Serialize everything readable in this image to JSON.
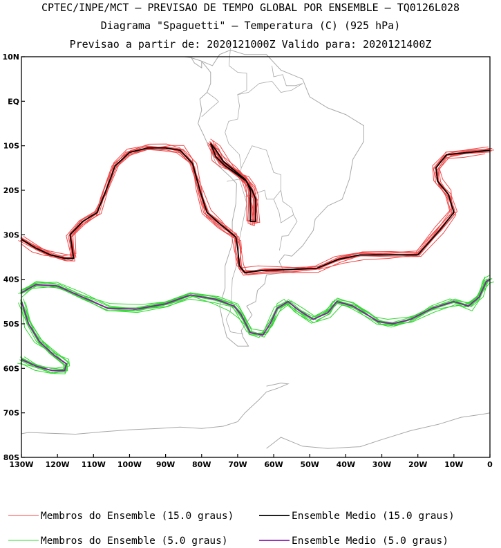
{
  "title": {
    "line1": "CPTEC/INPE/MCT – PREVISAO DE TEMPO GLOBAL POR ENSEMBLE – TQ0126L028",
    "line2": "Diagrama \"Spaguetti\" – Temperatura (C) (925 hPa)",
    "line3": "Previsao a partir de: 2020121000Z  Valido para: 2020121400Z"
  },
  "map": {
    "lat_range": [
      -80,
      10
    ],
    "lon_range": [
      -130,
      0
    ],
    "lat_ticks": [
      {
        "value": 10,
        "label": "10N"
      },
      {
        "value": 0,
        "label": "EQ"
      },
      {
        "value": -10,
        "label": "10S"
      },
      {
        "value": -20,
        "label": "20S"
      },
      {
        "value": -30,
        "label": "30S"
      },
      {
        "value": -40,
        "label": "40S"
      },
      {
        "value": -50,
        "label": "50S"
      },
      {
        "value": -60,
        "label": "60S"
      },
      {
        "value": -70,
        "label": "70S"
      },
      {
        "value": -80,
        "label": "80S"
      }
    ],
    "lon_ticks": [
      {
        "value": -130,
        "label": "130W"
      },
      {
        "value": -120,
        "label": "120W"
      },
      {
        "value": -110,
        "label": "110W"
      },
      {
        "value": -100,
        "label": "100W"
      },
      {
        "value": -90,
        "label": "90W"
      },
      {
        "value": -80,
        "label": "80W"
      },
      {
        "value": -70,
        "label": "70W"
      },
      {
        "value": -60,
        "label": "60W"
      },
      {
        "value": -50,
        "label": "50W"
      },
      {
        "value": -40,
        "label": "40W"
      },
      {
        "value": -30,
        "label": "30W"
      },
      {
        "value": -20,
        "label": "20W"
      },
      {
        "value": -10,
        "label": "10W"
      },
      {
        "value": 0,
        "label": "0"
      }
    ],
    "colors": {
      "member15": "#f04848",
      "mean15": "#000000",
      "member5": "#30d830",
      "mean5": "#8c1aa8",
      "coast": "#a8a8a8"
    },
    "contour15_mean": [
      [
        -130,
        -31
      ],
      [
        -126,
        -33
      ],
      [
        -122,
        -34.5
      ],
      [
        -118,
        -35.3
      ],
      [
        -115.5,
        -35.3
      ],
      [
        -116.5,
        -30
      ],
      [
        -113,
        -27
      ],
      [
        -109,
        -25
      ],
      [
        -107,
        -21
      ],
      [
        -104,
        -14.5
      ],
      [
        -100,
        -11.5
      ],
      [
        -95,
        -10.5
      ],
      [
        -90,
        -10.5
      ],
      [
        -86,
        -11
      ],
      [
        -82.5,
        -14
      ],
      [
        -80.5,
        -20
      ],
      [
        -78.5,
        -25
      ],
      [
        -75,
        -27.5
      ],
      [
        -72,
        -29.5
      ],
      [
        -70.5,
        -30.5
      ],
      [
        -70,
        -33
      ],
      [
        -69.5,
        -37
      ],
      [
        -68,
        -38.5
      ],
      [
        -63,
        -38
      ],
      [
        -55,
        -37.8
      ],
      [
        -48,
        -37.5
      ],
      [
        -42,
        -35.5
      ],
      [
        -36,
        -34.5
      ],
      [
        -28,
        -34.5
      ],
      [
        -20,
        -34.5
      ],
      [
        -14,
        -29
      ],
      [
        -10,
        -25
      ],
      [
        -11.5,
        -21
      ],
      [
        -14.5,
        -18
      ],
      [
        -15,
        -15
      ],
      [
        -12,
        -12
      ],
      [
        -6,
        -11.5
      ],
      [
        0,
        -11
      ]
    ],
    "contour15_mean_andes": [
      [
        -77.5,
        -9.5
      ],
      [
        -76,
        -12.5
      ],
      [
        -73.5,
        -14.5
      ],
      [
        -70,
        -16.5
      ],
      [
        -67.5,
        -18
      ],
      [
        -66.5,
        -20
      ],
      [
        -66.5,
        -27
      ],
      [
        -65,
        -27
      ],
      [
        -65,
        -22
      ],
      [
        -66,
        -20
      ],
      [
        -68,
        -17.5
      ],
      [
        -71,
        -15.5
      ],
      [
        -74,
        -13.5
      ],
      [
        -76,
        -11
      ],
      [
        -77.5,
        -9.5
      ]
    ],
    "contour5_mean": [
      [
        -130,
        -43
      ],
      [
        -126,
        -41.2
      ],
      [
        -120,
        -41.5
      ],
      [
        -113,
        -44
      ],
      [
        -106,
        -46.5
      ],
      [
        -98,
        -46.7
      ],
      [
        -90,
        -45.5
      ],
      [
        -83,
        -43.5
      ],
      [
        -76,
        -44.5
      ],
      [
        -71,
        -46
      ],
      [
        -69,
        -48
      ],
      [
        -66.5,
        -52
      ],
      [
        -63,
        -52.5
      ],
      [
        -61,
        -50
      ],
      [
        -59,
        -46.5
      ],
      [
        -56,
        -45
      ],
      [
        -53,
        -47
      ],
      [
        -49,
        -49
      ],
      [
        -45,
        -47.5
      ],
      [
        -42.5,
        -45
      ],
      [
        -38,
        -46
      ],
      [
        -35,
        -47.5
      ],
      [
        -31,
        -49.5
      ],
      [
        -27,
        -50
      ],
      [
        -22,
        -49
      ],
      [
        -16,
        -46.5
      ],
      [
        -10,
        -45
      ],
      [
        -6,
        -46
      ],
      [
        -3,
        -44
      ],
      [
        -1,
        -40.5
      ],
      [
        0,
        -40
      ]
    ],
    "contour5_mean_west": [
      [
        -130,
        -45
      ],
      [
        -128,
        -50
      ],
      [
        -125,
        -54
      ],
      [
        -121,
        -57
      ],
      [
        -117.5,
        -59
      ],
      [
        -118,
        -60.5
      ],
      [
        -121.5,
        -60.5
      ],
      [
        -126,
        -59.5
      ],
      [
        -130,
        -58
      ]
    ],
    "legend": [
      {
        "label": "Membros do Ensemble (15.0 graus)",
        "color": "member15"
      },
      {
        "label": "Ensemble Medio (15.0 graus)",
        "color": "mean15"
      },
      {
        "label": "Membros do Ensemble (5.0 graus)",
        "color": "member5"
      },
      {
        "label": "Ensemble Medio (5.0 graus)",
        "color": "mean5"
      }
    ]
  }
}
